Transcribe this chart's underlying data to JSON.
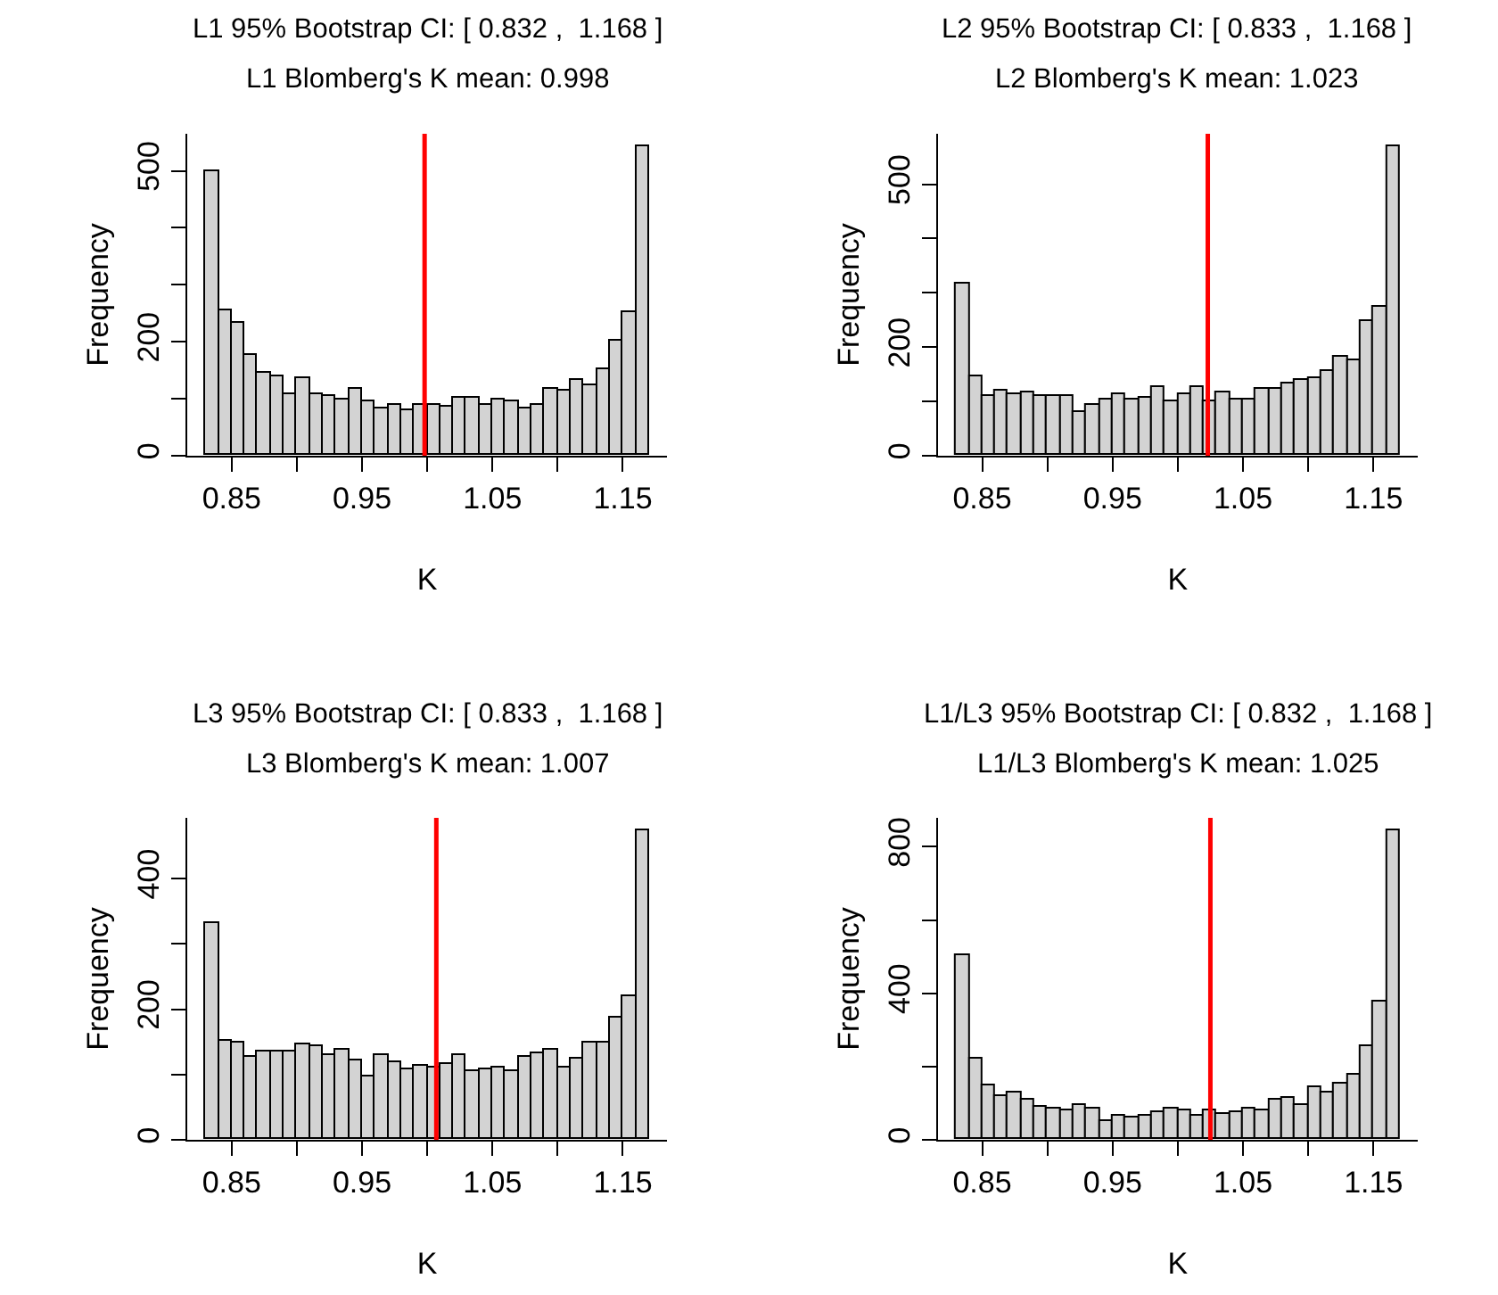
{
  "chart_data": [
    {
      "type": "histogram",
      "title": "L1 95% Bootstrap CI: [ 0.832 ,  1.168 ]",
      "subtitle": "L1 Blomberg's K mean: 0.998",
      "xlabel": "K",
      "ylabel": "Frequency",
      "color": "#d3d3d3",
      "bins": [
        0.83,
        0.84,
        0.85,
        0.86,
        0.87,
        0.88,
        0.89,
        0.9,
        0.91,
        0.92,
        0.93,
        0.94,
        0.95,
        0.96,
        0.97,
        0.98,
        0.99,
        1.0,
        1.01,
        1.02,
        1.03,
        1.04,
        1.05,
        1.06,
        1.07,
        1.08,
        1.09,
        1.1,
        1.11,
        1.12,
        1.13,
        1.14,
        1.15,
        1.16,
        1.17
      ],
      "values": [
        500,
        254,
        232,
        176,
        145,
        139,
        109,
        137,
        108,
        105,
        97,
        118,
        96,
        83,
        90,
        80,
        90,
        89,
        85,
        103,
        101,
        90,
        97,
        95,
        82,
        88,
        116,
        113,
        133,
        124,
        151,
        202,
        253,
        543
      ],
      "xlim": [
        0.816,
        1.184
      ],
      "xticks": [
        0.85,
        {
          "value": 0.9,
          "label": null
        },
        0.95,
        {
          "value": 1.0,
          "label": null
        },
        1.05,
        {
          "value": 1.1,
          "label": null
        },
        1.15
      ],
      "ylim": [
        0,
        565
      ],
      "yticks": [
        0,
        {
          "value": 100,
          "label": null
        },
        200,
        {
          "value": 300,
          "label": null
        },
        {
          "value": 400,
          "label": null
        },
        500
      ],
      "ref_lines": [
        {
          "axis": "x",
          "value": 0.998,
          "color": "#ff0000"
        }
      ]
    },
    {
      "type": "histogram",
      "title": "L2 95% Bootstrap CI: [ 0.833 ,  1.168 ]",
      "subtitle": "L2 Blomberg's K mean: 1.023",
      "xlabel": "K",
      "ylabel": "Frequency",
      "color": "#d3d3d3",
      "bins": [
        0.83,
        0.84,
        0.85,
        0.86,
        0.87,
        0.88,
        0.89,
        0.9,
        0.91,
        0.92,
        0.93,
        0.94,
        0.95,
        0.96,
        0.97,
        0.98,
        0.99,
        1.0,
        1.01,
        1.02,
        1.03,
        1.04,
        1.05,
        1.06,
        1.07,
        1.08,
        1.09,
        1.1,
        1.11,
        1.12,
        1.13,
        1.14,
        1.15,
        1.16,
        1.17
      ],
      "values": [
        317,
        146,
        109,
        121,
        114,
        116,
        110,
        109,
        110,
        79,
        92,
        105,
        114,
        104,
        106,
        125,
        101,
        113,
        125,
        100,
        115,
        102,
        102,
        124,
        124,
        134,
        141,
        144,
        156,
        182,
        175,
        248,
        275,
        570
      ],
      "xlim": [
        0.816,
        1.184
      ],
      "xticks": [
        0.85,
        {
          "value": 0.9,
          "label": null
        },
        0.95,
        {
          "value": 1.0,
          "label": null
        },
        1.05,
        {
          "value": 1.1,
          "label": null
        },
        1.15
      ],
      "ylim": [
        0,
        593
      ],
      "yticks": [
        0,
        {
          "value": 100,
          "label": null
        },
        200,
        {
          "value": 300,
          "label": null
        },
        {
          "value": 400,
          "label": null
        },
        500
      ],
      "ref_lines": [
        {
          "axis": "x",
          "value": 1.023,
          "color": "#ff0000"
        }
      ]
    },
    {
      "type": "histogram",
      "title": "L3 95% Bootstrap CI: [ 0.833 ,  1.168 ]",
      "subtitle": "L3 Blomberg's K mean: 1.007",
      "xlabel": "K",
      "ylabel": "Frequency",
      "color": "#d3d3d3",
      "bins": [
        0.83,
        0.84,
        0.85,
        0.86,
        0.87,
        0.88,
        0.89,
        0.9,
        0.91,
        0.92,
        0.93,
        0.94,
        0.95,
        0.96,
        0.97,
        0.98,
        0.99,
        1.0,
        1.01,
        1.02,
        1.03,
        1.04,
        1.05,
        1.06,
        1.07,
        1.08,
        1.09,
        1.1,
        1.11,
        1.12,
        1.13,
        1.14,
        1.15,
        1.16,
        1.17
      ],
      "values": [
        331,
        152,
        150,
        127,
        134,
        134,
        134,
        146,
        143,
        130,
        137,
        122,
        98,
        131,
        118,
        109,
        112,
        111,
        116,
        129,
        105,
        107,
        110,
        105,
        126,
        132,
        137,
        110,
        124,
        149,
        148,
        188,
        219,
        474
      ],
      "xlim": [
        0.816,
        1.184
      ],
      "xticks": [
        0.85,
        {
          "value": 0.9,
          "label": null
        },
        0.95,
        {
          "value": 1.0,
          "label": null
        },
        1.05,
        {
          "value": 1.1,
          "label": null
        },
        1.15
      ],
      "ylim": [
        0,
        493
      ],
      "yticks": [
        0,
        {
          "value": 100,
          "label": null
        },
        200,
        {
          "value": 300,
          "label": null
        },
        400
      ],
      "ref_lines": [
        {
          "axis": "x",
          "value": 1.007,
          "color": "#ff0000"
        }
      ]
    },
    {
      "type": "histogram",
      "title": "L1/L3 95% Bootstrap CI: [ 0.832 ,  1.168 ]",
      "subtitle": "L1/L3 Blomberg's K mean: 1.025",
      "xlabel": "K",
      "ylabel": "Frequency",
      "color": "#d3d3d3",
      "bins": [
        0.83,
        0.84,
        0.85,
        0.86,
        0.87,
        0.88,
        0.89,
        0.9,
        0.91,
        0.92,
        0.93,
        0.94,
        0.95,
        0.96,
        0.97,
        0.98,
        0.99,
        1.0,
        1.01,
        1.02,
        1.03,
        1.04,
        1.05,
        1.06,
        1.07,
        1.08,
        1.09,
        1.1,
        1.11,
        1.12,
        1.13,
        1.14,
        1.15,
        1.16,
        1.17
      ],
      "values": [
        502,
        222,
        150,
        121,
        127,
        108,
        89,
        83,
        82,
        95,
        83,
        51,
        64,
        61,
        64,
        76,
        87,
        80,
        66,
        78,
        72,
        74,
        83,
        80,
        110,
        114,
        97,
        142,
        131,
        152,
        178,
        254,
        379,
        845
      ],
      "xlim": [
        0.816,
        1.184
      ],
      "xticks": [
        0.85,
        {
          "value": 0.9,
          "label": null
        },
        0.95,
        {
          "value": 1.0,
          "label": null
        },
        1.05,
        {
          "value": 1.1,
          "label": null
        },
        1.15
      ],
      "ylim": [
        0,
        879
      ],
      "yticks": [
        0,
        {
          "value": 200,
          "label": null
        },
        400,
        {
          "value": 600,
          "label": null
        },
        800
      ],
      "ref_lines": [
        {
          "axis": "x",
          "value": 1.025,
          "color": "#ff0000"
        }
      ]
    }
  ]
}
